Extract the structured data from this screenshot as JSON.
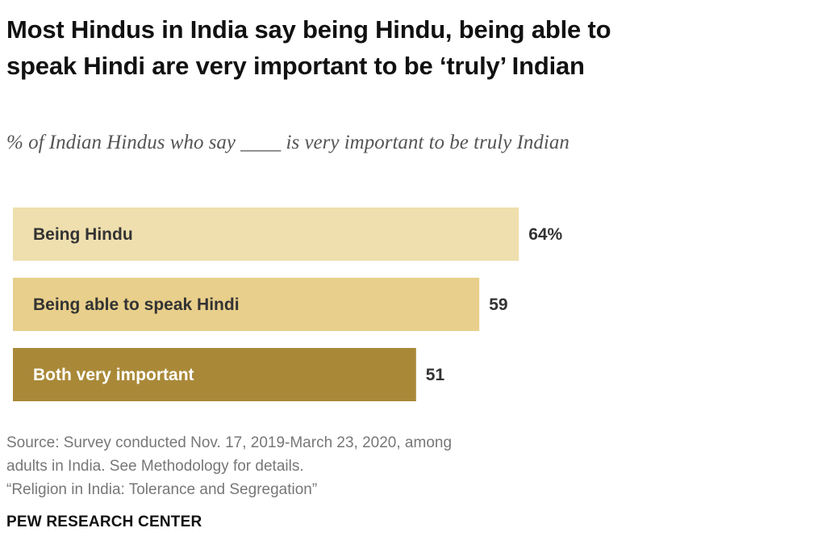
{
  "header": {
    "title": "Most Hindus in India say being Hindu, being able to speak Hindi are very important to be ‘truly’ Indian",
    "subtitle": "% of Indian Hindus who say ____ is very important to be truly Indian"
  },
  "chart_data": {
    "type": "bar",
    "orientation": "horizontal",
    "categories": [
      "Being Hindu",
      "Being able to speak Hindi",
      "Both very important"
    ],
    "values": [
      64,
      59,
      51
    ],
    "value_labels": [
      "64%",
      "59",
      "51"
    ],
    "bar_colors": [
      "#efdfae",
      "#e8cf8b",
      "#a98938"
    ],
    "label_colors": [
      "#333333",
      "#333333",
      "#ffffff"
    ],
    "xlim": [
      0,
      100
    ],
    "grid": false,
    "legend": "none"
  },
  "footer": {
    "source_lines": [
      "Source: Survey conducted Nov. 17, 2019-March 23, 2020, among",
      "adults in India. See Methodology for details.",
      "“Religion in India: Tolerance and Segregation”"
    ],
    "org": "PEW RESEARCH CENTER"
  }
}
